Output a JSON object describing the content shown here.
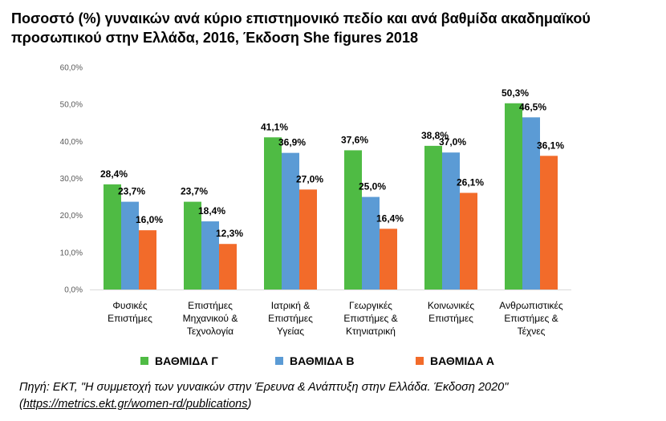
{
  "title_line1": "Ποσοστό (%) γυναικών ανά κύριο επιστημονικό πεδίο και ανά βαθμίδα ακαδημαϊκού",
  "title_line2": "προσωπικού στην Ελλάδα, 2016, Έκδοση She figures 2018",
  "source_line1": "Πηγή: ΕΚΤ, \"Η συμμετοχή των γυναικών στην Έρευνα & Ανάπτυξη στην Ελλάδα. Έκδοση 2020\"",
  "source_open": "(",
  "source_link": "https://metrics.ekt.gr/women-rd/publications",
  "source_close": ")",
  "chart_data": {
    "type": "bar",
    "title": "Ποσοστό (%) γυναικών ανά κύριο επιστημονικό πεδίο και ανά βαθμίδα ακαδημαϊκού προσωπικού στην Ελλάδα, 2016, Έκδοση She figures 2018",
    "categories": [
      [
        "Φυσικές",
        "Επιστήμες"
      ],
      [
        "Επιστήμες",
        "Μηχανικού &",
        "Τεχνολογία"
      ],
      [
        "Ιατρική &",
        "Επιστήμες",
        "Υγείας"
      ],
      [
        "Γεωργικές",
        "Επιστήμες &",
        "Κτηνιατρική"
      ],
      [
        "Κοινωνικές",
        "Επιστήμες"
      ],
      [
        "Ανθρωπιστικές",
        "Επιστήμες &",
        "Τέχνες"
      ]
    ],
    "series": [
      {
        "name": "ΒΑΘΜΙΔΑ Γ",
        "color": "#4fbb44",
        "values": [
          28.4,
          23.7,
          41.1,
          37.6,
          38.8,
          50.3
        ],
        "labels": [
          "28,4%",
          "23,7%",
          "41,1%",
          "37,6%",
          "38,8%",
          "50,3%"
        ]
      },
      {
        "name": "ΒΑΘΜΙΔΑ Β",
        "color": "#5b9bd5",
        "values": [
          23.7,
          18.4,
          36.9,
          25.0,
          37.0,
          46.5
        ],
        "labels": [
          "23,7%",
          "18,4%",
          "36,9%",
          "25,0%",
          "37,0%",
          "46,5%"
        ]
      },
      {
        "name": "ΒΑΘΜΙΔΑ Α",
        "color": "#f26b2a",
        "values": [
          16.0,
          12.3,
          27.0,
          16.4,
          26.1,
          36.1
        ],
        "labels": [
          "16,0%",
          "12,3%",
          "27,0%",
          "16,4%",
          "26,1%",
          "36,1%"
        ]
      }
    ],
    "yticks": [
      "0,0%",
      "10,0%",
      "20,0%",
      "30,0%",
      "40,0%",
      "50,0%",
      "60,0%"
    ],
    "ylim": [
      0,
      60
    ],
    "grid": false,
    "legend_position": "bottom"
  }
}
